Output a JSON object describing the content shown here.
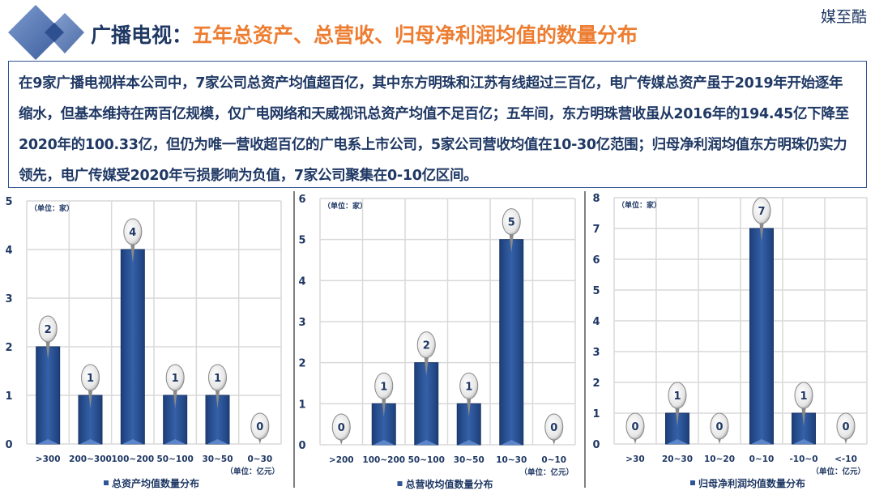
{
  "header": {
    "title_prefix": "广播电视：",
    "title_main": "五年总资产、总营收、归母净利润均值的数量分布",
    "brand": "媒至酷"
  },
  "summary": "在9家广播电视样本公司中，7家公司总资产均值超百亿，其中东方明珠和江苏有线超过三百亿，电广传媒总资产虽于2019年开始逐年缩水，但基本维持在两百亿规模，仅广电网络和天威视讯总资产均值不足百亿；五年间，东方明珠营收虽从2016年的194.45亿下降至2020年的100.33亿，但仍为唯一营收超百亿的广电系上市公司，5家公司营收均值在10-30亿范围；归母净利润均值东方明珠仍实力领先，电广传媒受2020年亏损影响为负值，7家公司聚集在0-10亿区间。",
  "colors": {
    "bar": "#2f5597",
    "axis_text": "#1f3864",
    "title_orange": "#ed7d31"
  },
  "chart_data": [
    {
      "type": "bar",
      "categories": [
        ">300",
        "200~300",
        "100~200",
        "50~100",
        "30~50",
        "0~30"
      ],
      "values": [
        2,
        1,
        4,
        1,
        1,
        0
      ],
      "ylim": [
        0,
        5
      ],
      "yticks": [
        0,
        1,
        2,
        3,
        4,
        5
      ],
      "y_unit": "（单位：家）",
      "x_unit": "（单位：亿元）",
      "legend": "总资产均值数量分布",
      "legend_position": "bottom",
      "grid": true
    },
    {
      "type": "bar",
      "categories": [
        ">200",
        "100~200",
        "50~100",
        "30~50",
        "10~30",
        "0~10"
      ],
      "values": [
        0,
        1,
        2,
        1,
        5,
        0
      ],
      "ylim": [
        0,
        6
      ],
      "yticks": [
        0,
        1,
        2,
        3,
        4,
        5,
        6
      ],
      "y_unit": "（单位：家）",
      "x_unit": "（单位：亿元）",
      "legend": "总营收均值数量分布",
      "legend_position": "bottom",
      "grid": true
    },
    {
      "type": "bar",
      "categories": [
        ">30",
        "20~30",
        "10~20",
        "0~10",
        "-10~0",
        "<-10"
      ],
      "values": [
        0,
        1,
        0,
        7,
        1,
        0
      ],
      "ylim": [
        0,
        8
      ],
      "yticks": [
        0,
        1,
        2,
        3,
        4,
        5,
        6,
        7,
        8
      ],
      "y_unit": "（单位：家）",
      "x_unit": "（单位：亿元）",
      "legend": "归母净利润均值数量分布",
      "legend_position": "bottom",
      "grid": true
    }
  ]
}
